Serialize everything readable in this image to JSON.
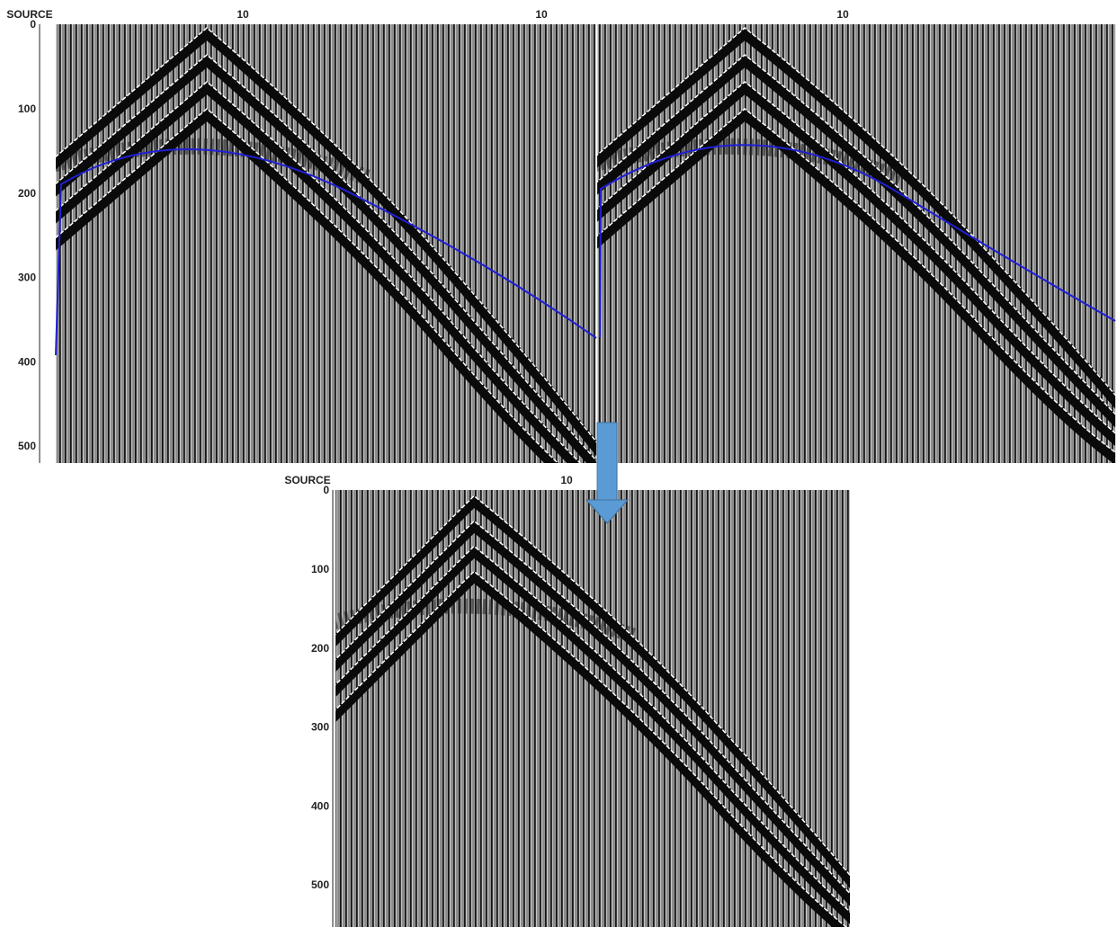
{
  "top_panel": {
    "header_label": "SOURCE",
    "trace_labels": [
      "10",
      "10",
      "10"
    ],
    "time_labels": [
      "0",
      "100",
      "200",
      "300",
      "400",
      "500"
    ]
  },
  "bottom_panel": {
    "header_label": "SOURCE",
    "trace_labels": [
      "10"
    ],
    "time_labels": [
      "0",
      "100",
      "200",
      "300",
      "400",
      "500"
    ]
  }
}
